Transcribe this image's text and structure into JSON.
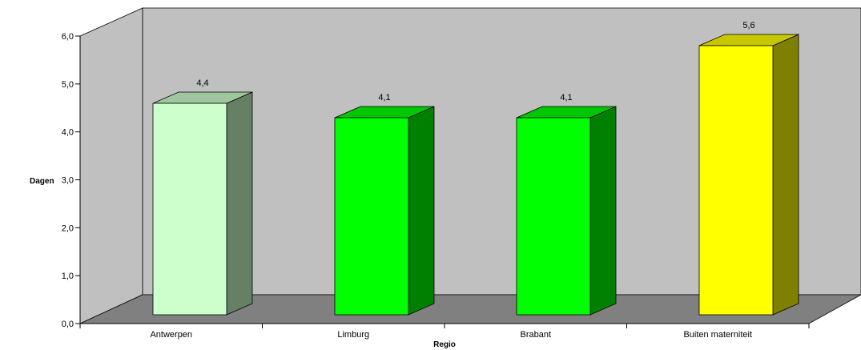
{
  "chart_data": {
    "type": "bar",
    "style": "3d",
    "categories": [
      "Antwerpen",
      "Limburg",
      "Brabant",
      "Buiten materniteit"
    ],
    "values": [
      4.4,
      4.1,
      4.1,
      5.6
    ],
    "data_labels": [
      "4,4",
      "4,1",
      "4,1",
      "5,6"
    ],
    "colors": [
      "#ccffcc",
      "#00ff00",
      "#00ff00",
      "#ffff00"
    ],
    "xlabel": "Regio",
    "ylabel": "Dagen",
    "ylim": [
      0,
      6
    ],
    "yticks": [
      0,
      1,
      2,
      3,
      4,
      5,
      6
    ],
    "ytick_labels": [
      "0,0",
      "1,0",
      "2,0",
      "3,0",
      "4,0",
      "5,0",
      "6,0"
    ],
    "grid": false,
    "legend": "none",
    "wall_color": "#c0c0c0",
    "floor_color": "#808080"
  }
}
